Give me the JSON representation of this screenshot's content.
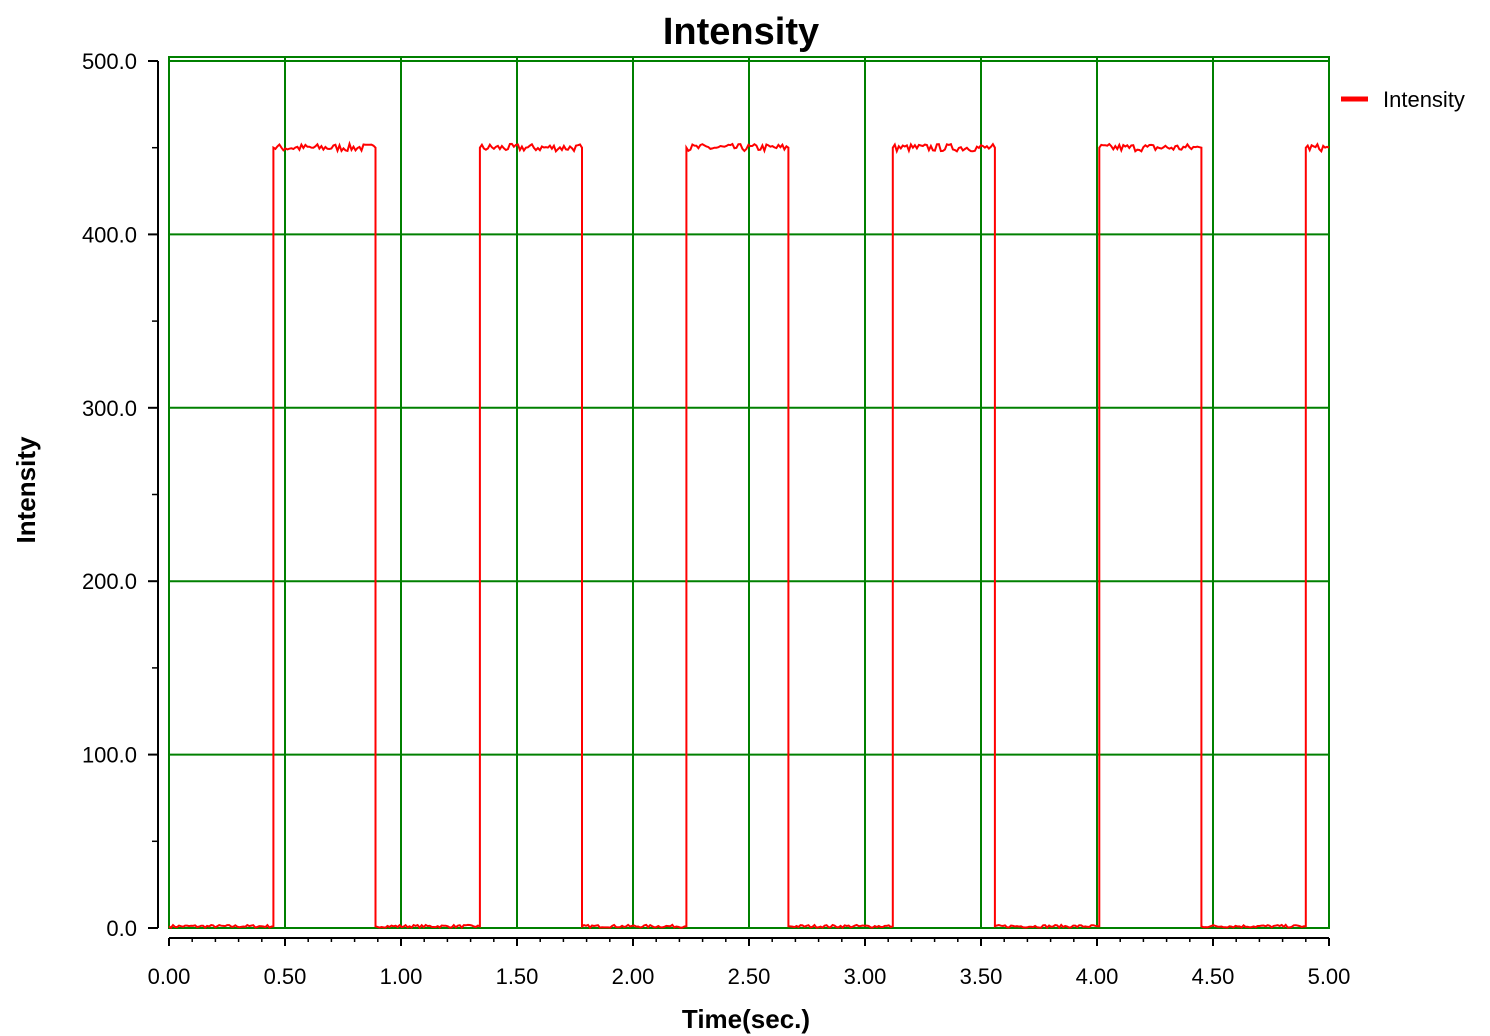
{
  "chart_data": {
    "type": "line",
    "title": "Intensity",
    "xlabel": "Time(sec.)",
    "ylabel": "Intensity",
    "xlim": [
      0,
      5
    ],
    "ylim": [
      0,
      500
    ],
    "x_ticks": [
      "0.00",
      "0.50",
      "1.00",
      "1.50",
      "2.00",
      "2.50",
      "3.00",
      "3.50",
      "4.00",
      "4.50",
      "5.00"
    ],
    "y_ticks": [
      "0.0",
      "100.0",
      "200.0",
      "300.0",
      "400.0",
      "500.0"
    ],
    "grid": true,
    "legend_position": "top-right",
    "colors": {
      "series": "#ff0000",
      "grid": "#008000",
      "axes": "#000000"
    },
    "series": [
      {
        "name": "Intensity",
        "color": "#ff0000",
        "x": [
          0.0,
          0.45,
          0.45,
          0.89,
          0.89,
          1.34,
          1.34,
          1.78,
          1.78,
          2.23,
          2.23,
          2.67,
          2.67,
          3.12,
          3.12,
          3.56,
          3.56,
          4.01,
          4.01,
          4.45,
          4.45,
          4.9,
          4.9,
          5.0
        ],
        "y": [
          1,
          1,
          450,
          450,
          1,
          1,
          450,
          450,
          1,
          1,
          450,
          450,
          1,
          1,
          450,
          450,
          1,
          1,
          450,
          450,
          1,
          1,
          450,
          450
        ]
      }
    ]
  }
}
